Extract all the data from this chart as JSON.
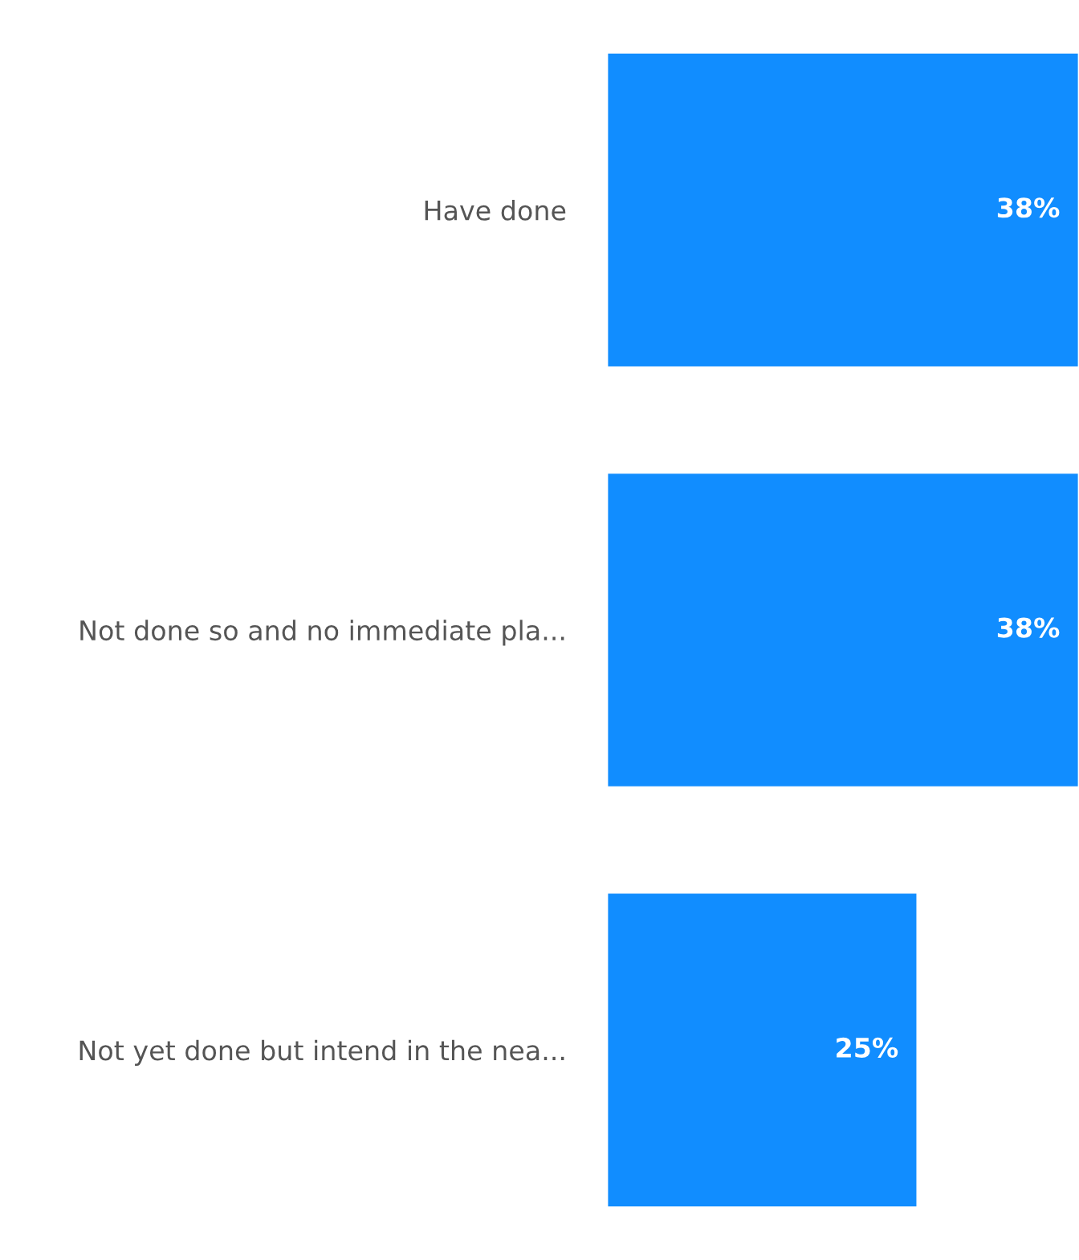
{
  "chart_data": {
    "type": "bar",
    "orientation": "horizontal",
    "categories": [
      "Have done",
      "Not done so and no immediate pla...",
      "Not yet done but intend in the nea..."
    ],
    "values": [
      38,
      38,
      25
    ],
    "value_labels": [
      "38%",
      "38%",
      "25%"
    ],
    "color": "#118dff",
    "grid": false,
    "legend": false
  }
}
